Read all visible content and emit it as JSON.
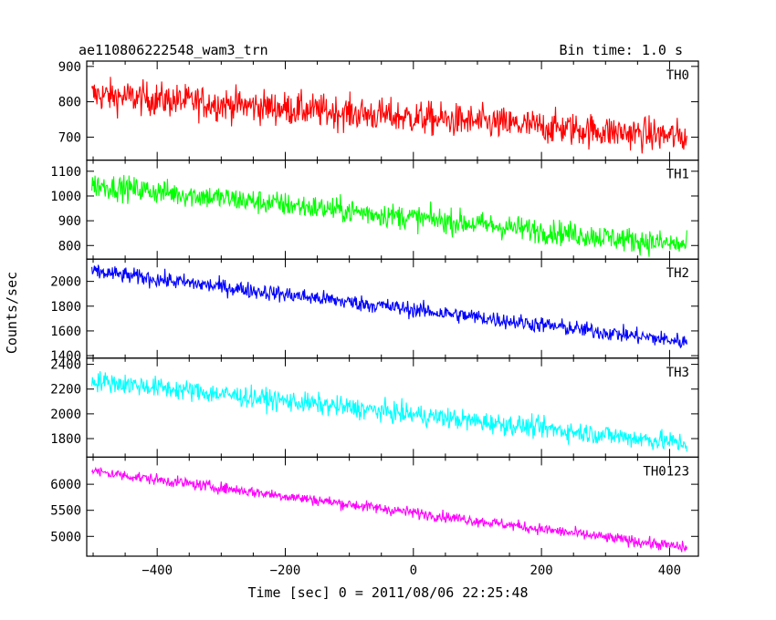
{
  "header": {
    "title": "ae110806222548_wam3_trn",
    "bin_time": "Bin time: 1.0 s"
  },
  "axes": {
    "xlabel": "Time [sec] 0 = 2011/08/06 22:25:48",
    "ylabel": "Counts/sec"
  },
  "chart_data": {
    "type": "line",
    "title": "ae110806222548_wam3_trn",
    "xlabel": "Time [sec] 0 = 2011/08/06 22:25:48",
    "ylabel": "Counts/sec",
    "xlim": [
      -510,
      445
    ],
    "x_ticks": [
      -400,
      -200,
      0,
      200,
      400
    ],
    "x_range": [
      -502,
      427
    ],
    "series": [
      {
        "name": "TH0",
        "color": "#ff0000",
        "ylim": [
          635,
          915
        ],
        "y_ticks": [
          700,
          800,
          900
        ],
        "trend_start": 820,
        "trend_end": 700,
        "noise": 40
      },
      {
        "name": "TH1",
        "color": "#00ff00",
        "ylim": [
          745,
          1145
        ],
        "y_ticks": [
          800,
          900,
          1000,
          1100
        ],
        "trend_start": 1045,
        "trend_end": 800,
        "noise": 42
      },
      {
        "name": "TH2",
        "color": "#0000ff",
        "ylim": [
          1380,
          2180
        ],
        "y_ticks": [
          1400,
          1600,
          1800,
          2000
        ],
        "trend_start": 2080,
        "trend_end": 1510,
        "noise": 55
      },
      {
        "name": "TH3",
        "color": "#00ffff",
        "ylim": [
          1650,
          2450
        ],
        "y_ticks": [
          1800,
          2000,
          2200,
          2400
        ],
        "trend_start": 2270,
        "trend_end": 1760,
        "noise": 70
      },
      {
        "name": "TH0123",
        "color": "#ff00ff",
        "ylim": [
          4620,
          6520
        ],
        "y_ticks": [
          5000,
          5500,
          6000
        ],
        "trend_start": 6250,
        "trend_end": 4780,
        "noise": 90
      }
    ]
  }
}
